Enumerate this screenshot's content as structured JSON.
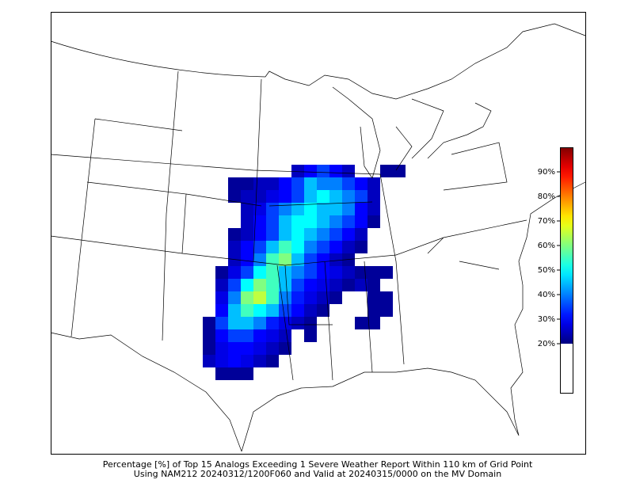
{
  "map": {
    "caption": [
      "Percentage [%] of Top 15 Analogs Exceeding 1 Severe Weather Report Within 110 km of Grid Point",
      "Using NAM212 20240312/1200F060 and Valid at 20240315/0000 on the MV Domain"
    ],
    "colorbar": {
      "cmap": "jet",
      "lim": [
        0,
        100
      ],
      "colored_from": 20,
      "ticks": [
        {
          "value": 20,
          "label": "20%"
        },
        {
          "value": 30,
          "label": "30%"
        },
        {
          "value": 40,
          "label": "40%"
        },
        {
          "value": 50,
          "label": "50%"
        },
        {
          "value": 60,
          "label": "60%"
        },
        {
          "value": 70,
          "label": "70%"
        },
        {
          "value": 80,
          "label": "80%"
        },
        {
          "value": 90,
          "label": "90%"
        }
      ]
    },
    "grid": [
      [
        null,
        null,
        null,
        null,
        null,
        null,
        null,
        25,
        30,
        35,
        30,
        25,
        null,
        null,
        22,
        22
      ],
      [
        null,
        null,
        22,
        22,
        25,
        25,
        30,
        35,
        45,
        40,
        40,
        35,
        30,
        25,
        null,
        null
      ],
      [
        null,
        null,
        22,
        25,
        25,
        28,
        30,
        35,
        45,
        50,
        45,
        40,
        35,
        25,
        null,
        null
      ],
      [
        null,
        null,
        null,
        25,
        28,
        35,
        40,
        45,
        50,
        45,
        45,
        40,
        30,
        25,
        null,
        null
      ],
      [
        null,
        null,
        null,
        25,
        30,
        35,
        45,
        50,
        50,
        45,
        40,
        35,
        30,
        22,
        null,
        null
      ],
      [
        null,
        null,
        22,
        25,
        30,
        35,
        45,
        50,
        45,
        40,
        35,
        30,
        25,
        null,
        null,
        null
      ],
      [
        null,
        null,
        25,
        30,
        35,
        45,
        55,
        50,
        40,
        35,
        30,
        25,
        22,
        null,
        null,
        null
      ],
      [
        null,
        null,
        25,
        30,
        40,
        55,
        60,
        45,
        35,
        30,
        25,
        22,
        null,
        null,
        null,
        null
      ],
      [
        null,
        22,
        28,
        35,
        50,
        55,
        45,
        40,
        35,
        30,
        28,
        25,
        22,
        22,
        22,
        null
      ],
      [
        null,
        25,
        35,
        50,
        60,
        55,
        45,
        35,
        30,
        28,
        25,
        22,
        25,
        22,
        null,
        null
      ],
      [
        null,
        28,
        40,
        60,
        65,
        55,
        40,
        32,
        28,
        25,
        22,
        null,
        null,
        22,
        22,
        null
      ],
      [
        null,
        30,
        45,
        55,
        50,
        45,
        35,
        30,
        25,
        22,
        null,
        null,
        null,
        22,
        22,
        null
      ],
      [
        22,
        35,
        45,
        45,
        40,
        32,
        28,
        25,
        22,
        null,
        null,
        null,
        22,
        22,
        null,
        null
      ],
      [
        22,
        30,
        35,
        35,
        30,
        28,
        25,
        null,
        22,
        null,
        null,
        null,
        null,
        null,
        null,
        null
      ],
      [
        22,
        28,
        30,
        30,
        28,
        25,
        22,
        null,
        null,
        null,
        null,
        null,
        null,
        null,
        null,
        null
      ],
      [
        25,
        28,
        30,
        28,
        25,
        22,
        null,
        null,
        null,
        null,
        null,
        null,
        null,
        null,
        null,
        null
      ],
      [
        null,
        22,
        22,
        22,
        null,
        null,
        null,
        null,
        null,
        null,
        null,
        null,
        null,
        null,
        null,
        null
      ]
    ]
  }
}
